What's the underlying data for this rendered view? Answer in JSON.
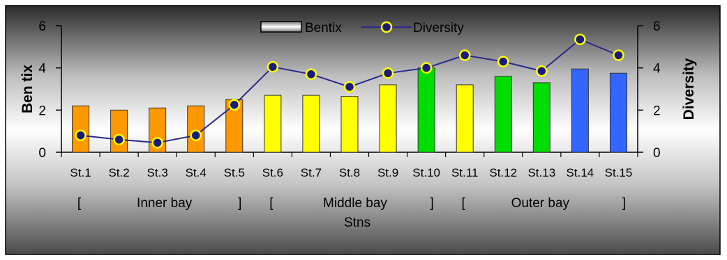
{
  "chart_data": {
    "type": "bar",
    "categories": [
      "St.1",
      "St.2",
      "St.3",
      "St.4",
      "St.5",
      "St.6",
      "St.7",
      "St.8",
      "St.9",
      "St.10",
      "St.11",
      "St.12",
      "St.13",
      "St.14",
      "St.15"
    ],
    "series": [
      {
        "name": "Bentix",
        "type": "bar",
        "axis": "left",
        "values": [
          2.2,
          2.0,
          2.1,
          2.2,
          2.5,
          2.7,
          2.7,
          2.65,
          3.2,
          4.0,
          3.2,
          3.6,
          3.3,
          3.95,
          3.75
        ],
        "colors": [
          "#ff9900",
          "#ff9900",
          "#ff9900",
          "#ff9900",
          "#ff9900",
          "#ffff00",
          "#ffff00",
          "#ffff00",
          "#ffff00",
          "#00dd00",
          "#ffff00",
          "#00dd00",
          "#00dd00",
          "#3366ff",
          "#3366ff"
        ]
      },
      {
        "name": "Diversity",
        "type": "line",
        "axis": "right",
        "values": [
          0.8,
          0.6,
          0.45,
          0.8,
          2.25,
          4.05,
          3.7,
          3.1,
          3.75,
          4.0,
          4.6,
          4.3,
          3.85,
          5.35,
          4.6
        ],
        "line_color": "#2a2a8c",
        "marker_fill": "#1a1a80",
        "marker_edge": "#ffff00"
      }
    ],
    "xlabel": "Stns",
    "ylabel": "Ben tix",
    "y2label": "Diversity",
    "ylim": [
      0,
      6
    ],
    "y2lim": [
      0,
      6
    ],
    "yticks": [
      0,
      2,
      4,
      6
    ],
    "y2ticks": [
      0,
      2,
      4,
      6
    ],
    "legend_position": "top-center",
    "groups": [
      {
        "open": "[",
        "label": "Inner bay",
        "close": "]",
        "from": 0,
        "to": 4
      },
      {
        "open": "[",
        "label": "Middle bay",
        "close": "]",
        "from": 5,
        "to": 9
      },
      {
        "open": "[",
        "label": "Outer bay",
        "close": "]",
        "from": 10,
        "to": 14
      }
    ],
    "grid": false
  }
}
